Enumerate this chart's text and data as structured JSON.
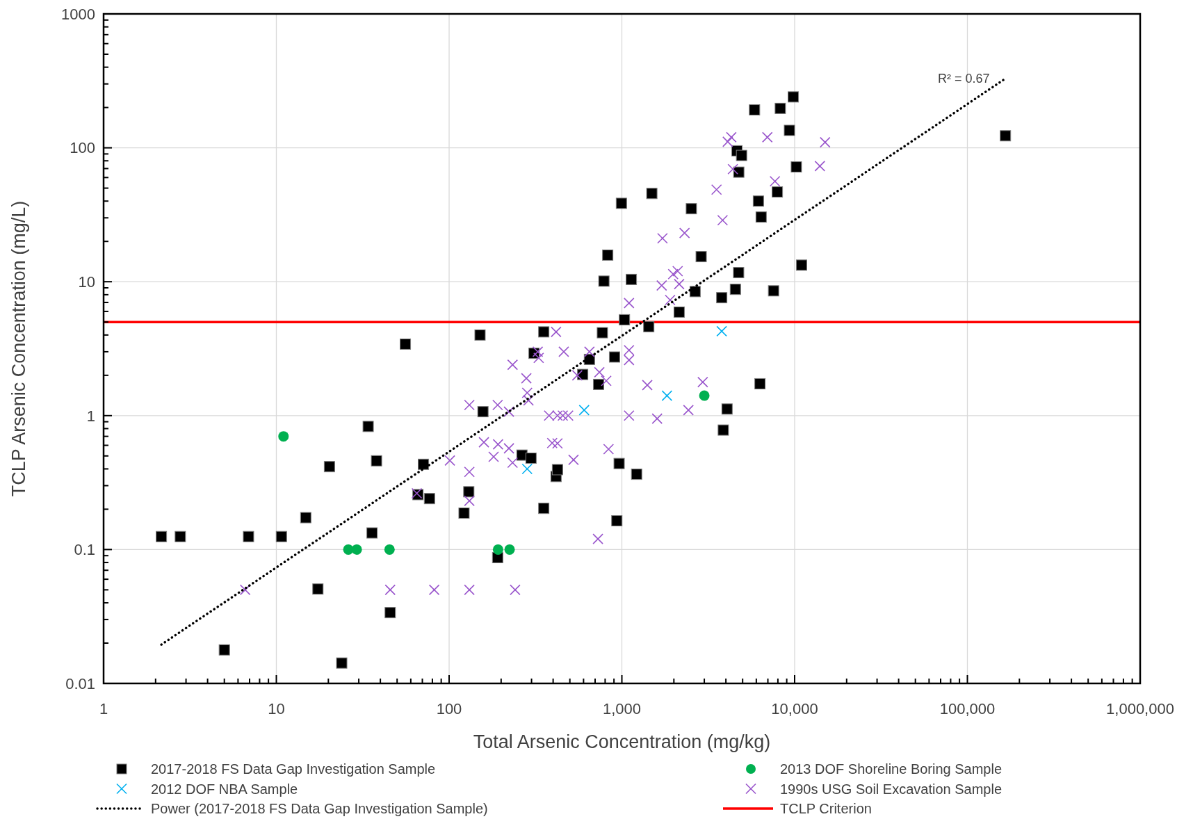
{
  "chart_data": {
    "type": "scatter",
    "xlabel": "Total Arsenic Concentration (mg/kg)",
    "ylabel": "TCLP Arsenic Concentration (mg/L)",
    "log": "xy",
    "grid": true,
    "legend": "bottom",
    "xlim": [
      1,
      1000000
    ],
    "ylim": [
      0.01,
      1000
    ],
    "xticks": [
      1,
      {
        "value": 2,
        "label": null
      },
      {
        "value": 3,
        "label": null
      },
      {
        "value": 4,
        "label": null
      },
      {
        "value": 5,
        "label": null
      },
      {
        "value": 6,
        "label": null
      },
      {
        "value": 7,
        "label": null
      },
      {
        "value": 8,
        "label": null
      },
      {
        "value": 9,
        "label": null
      },
      10,
      {
        "value": 20,
        "label": null
      },
      {
        "value": 30,
        "label": null
      },
      {
        "value": 40,
        "label": null
      },
      {
        "value": 50,
        "label": null
      },
      {
        "value": 60,
        "label": null
      },
      {
        "value": 70,
        "label": null
      },
      {
        "value": 80,
        "label": null
      },
      {
        "value": 90,
        "label": null
      },
      100,
      {
        "value": 200,
        "label": null
      },
      {
        "value": 300,
        "label": null
      },
      {
        "value": 400,
        "label": null
      },
      {
        "value": 500,
        "label": null
      },
      {
        "value": 600,
        "label": null
      },
      {
        "value": 700,
        "label": null
      },
      {
        "value": 800,
        "label": null
      },
      {
        "value": 900,
        "label": null
      },
      {
        "value": 1000,
        "label": "1,000"
      },
      {
        "value": 2000,
        "label": null
      },
      {
        "value": 3000,
        "label": null
      },
      {
        "value": 4000,
        "label": null
      },
      {
        "value": 5000,
        "label": null
      },
      {
        "value": 6000,
        "label": null
      },
      {
        "value": 7000,
        "label": null
      },
      {
        "value": 8000,
        "label": null
      },
      {
        "value": 9000,
        "label": null
      },
      {
        "value": 10000,
        "label": "10,000"
      },
      {
        "value": 20000,
        "label": null
      },
      {
        "value": 30000,
        "label": null
      },
      {
        "value": 40000,
        "label": null
      },
      {
        "value": 50000,
        "label": null
      },
      {
        "value": 60000,
        "label": null
      },
      {
        "value": 70000,
        "label": null
      },
      {
        "value": 80000,
        "label": null
      },
      {
        "value": 90000,
        "label": null
      },
      {
        "value": 100000,
        "label": "100,000"
      },
      {
        "value": 200000,
        "label": null
      },
      {
        "value": 300000,
        "label": null
      },
      {
        "value": 400000,
        "label": null
      },
      {
        "value": 500000,
        "label": null
      },
      {
        "value": 600000,
        "label": null
      },
      {
        "value": 700000,
        "label": null
      },
      {
        "value": 800000,
        "label": null
      },
      {
        "value": 900000,
        "label": null
      },
      {
        "value": 1000000,
        "label": "1,000,000"
      }
    ],
    "yticks": [
      0.01,
      {
        "value": 0.02,
        "label": null
      },
      {
        "value": 0.03,
        "label": null
      },
      {
        "value": 0.04,
        "label": null
      },
      {
        "value": 0.05,
        "label": null
      },
      {
        "value": 0.06,
        "label": null
      },
      {
        "value": 0.07,
        "label": null
      },
      {
        "value": 0.08,
        "label": null
      },
      {
        "value": 0.09,
        "label": null
      },
      0.1,
      {
        "value": 0.2,
        "label": null
      },
      {
        "value": 0.3,
        "label": null
      },
      {
        "value": 0.4,
        "label": null
      },
      {
        "value": 0.5,
        "label": null
      },
      {
        "value": 0.6,
        "label": null
      },
      {
        "value": 0.7,
        "label": null
      },
      {
        "value": 0.8,
        "label": null
      },
      {
        "value": 0.9,
        "label": null
      },
      1,
      {
        "value": 2,
        "label": null
      },
      {
        "value": 3,
        "label": null
      },
      {
        "value": 4,
        "label": null
      },
      {
        "value": 5,
        "label": null
      },
      {
        "value": 6,
        "label": null
      },
      {
        "value": 7,
        "label": null
      },
      {
        "value": 8,
        "label": null
      },
      {
        "value": 9,
        "label": null
      },
      10,
      {
        "value": 20,
        "label": null
      },
      {
        "value": 30,
        "label": null
      },
      {
        "value": 40,
        "label": null
      },
      {
        "value": 50,
        "label": null
      },
      {
        "value": 60,
        "label": null
      },
      {
        "value": 70,
        "label": null
      },
      {
        "value": 80,
        "label": null
      },
      {
        "value": 90,
        "label": null
      },
      100,
      {
        "value": 200,
        "label": null
      },
      {
        "value": 300,
        "label": null
      },
      {
        "value": 400,
        "label": null
      },
      {
        "value": 500,
        "label": null
      },
      {
        "value": 600,
        "label": null
      },
      {
        "value": 700,
        "label": null
      },
      {
        "value": 800,
        "label": null
      },
      {
        "value": 900,
        "label": null
      },
      1000
    ],
    "series": [
      {
        "name": "2017-2018 FS Data Gap Investigation Sample",
        "color": "#000000",
        "marker": "square",
        "x": [
          2.16,
          2.78,
          5.0,
          6.9,
          10.7,
          14.8,
          17.4,
          20.3,
          23.9,
          34,
          35.8,
          38,
          45.6,
          55.8,
          66,
          71,
          77,
          122,
          130,
          151,
          157,
          191,
          264,
          298,
          310,
          353,
          353,
          416,
          424,
          593,
          649,
          733,
          771,
          787,
          828,
          907,
          935,
          964,
          994,
          1035,
          1134,
          1217,
          1431,
          1491,
          2146,
          2524,
          2655,
          2877,
          3784,
          3864,
          4063,
          4540,
          4636,
          4740,
          4750,
          4930,
          5860,
          6170,
          6300,
          6400,
          7550,
          7940,
          8260,
          9330,
          9820,
          10230,
          10970,
          166000
        ],
        "values": [
          0.125,
          0.125,
          0.0178,
          0.125,
          0.125,
          0.173,
          0.0507,
          0.416,
          0.0142,
          0.83,
          0.133,
          0.46,
          0.0338,
          3.42,
          0.257,
          0.433,
          0.24,
          0.187,
          0.27,
          4.0,
          1.07,
          0.087,
          0.507,
          0.481,
          2.92,
          4.22,
          0.203,
          0.351,
          0.395,
          2.03,
          2.63,
          1.71,
          4.16,
          10.1,
          15.8,
          2.74,
          0.164,
          0.439,
          38.5,
          5.2,
          10.4,
          0.365,
          4.62,
          45.6,
          5.93,
          35.1,
          8.44,
          15.4,
          7.6,
          0.78,
          1.12,
          8.77,
          95,
          11.7,
          65.8,
          87.7,
          192,
          40,
          1.73,
          30.4,
          8.55,
          46.8,
          197,
          135,
          240,
          72,
          13.3,
          123
        ]
      },
      {
        "name": "2013 DOF Shoreline Boring Sample",
        "color": "#00b050",
        "marker": "circle",
        "x": [
          11,
          26.1,
          29.2,
          45.2,
          192,
          224,
          3000
        ],
        "values": [
          0.7,
          0.1,
          0.1,
          0.1,
          0.1,
          0.1,
          1.41
        ]
      },
      {
        "name": "2012 DOF NBA Sample",
        "color": "#00b0f0",
        "marker": "cross",
        "x": [
          283,
          605,
          1824,
          3784
        ],
        "values": [
          0.4,
          1.1,
          1.41,
          4.27
        ]
      },
      {
        "name": "1990s USG Soil Excavation Sample",
        "color": "#9955cc",
        "marker": "cross",
        "x": [
          6.6,
          45.6,
          82,
          131,
          241,
          65,
          101,
          131,
          131,
          131,
          159,
          181,
          191,
          192,
          222,
          222,
          233,
          233,
          280,
          283,
          288,
          326,
          330,
          379,
          395,
          416,
          424,
          424,
          455,
          461,
          489,
          525,
          552,
          649,
          741,
          727,
          812,
          837,
          1100,
          1100,
          1100,
          1100,
          1403,
          1600,
          1718,
          1700,
          1902,
          1980,
          2104,
          2146,
          2306,
          2427,
          2939,
          3532,
          3828,
          4100,
          4300,
          4390,
          6950,
          7690,
          14000,
          15000
        ],
        "values": [
          0.05,
          0.05,
          0.05,
          0.05,
          0.05,
          0.263,
          0.462,
          0.38,
          0.231,
          1.2,
          0.632,
          0.493,
          1.2,
          0.61,
          1.07,
          0.57,
          0.445,
          2.4,
          1.9,
          1.48,
          1.3,
          3.0,
          2.7,
          1.0,
          0.624,
          4.22,
          1.0,
          0.62,
          1.0,
          3.0,
          1.0,
          0.468,
          2.0,
          3.0,
          2.11,
          0.12,
          1.82,
          0.562,
          6.93,
          3.08,
          2.6,
          1.0,
          1.69,
          0.95,
          21.1,
          9.37,
          7.3,
          11.4,
          12,
          9.6,
          23.1,
          1.1,
          1.78,
          48.7,
          28.8,
          111,
          120,
          69.3,
          120,
          56.2,
          73,
          110
        ]
      },
      {
        "name": "Power (2017-2018 FS Data Gap Investigation Sample)",
        "type": "line",
        "color": "#000000",
        "marker": "none",
        "line_style": "dotted",
        "x": [
          2.16,
          166000
        ],
        "values": [
          0.0195,
          329
        ]
      }
    ],
    "ref_lines": [
      {
        "axis": "y",
        "value": 5,
        "label": "TCLP Criterion",
        "color": "#ff0000"
      }
    ],
    "annotations": [
      "R² = 0.67"
    ]
  }
}
